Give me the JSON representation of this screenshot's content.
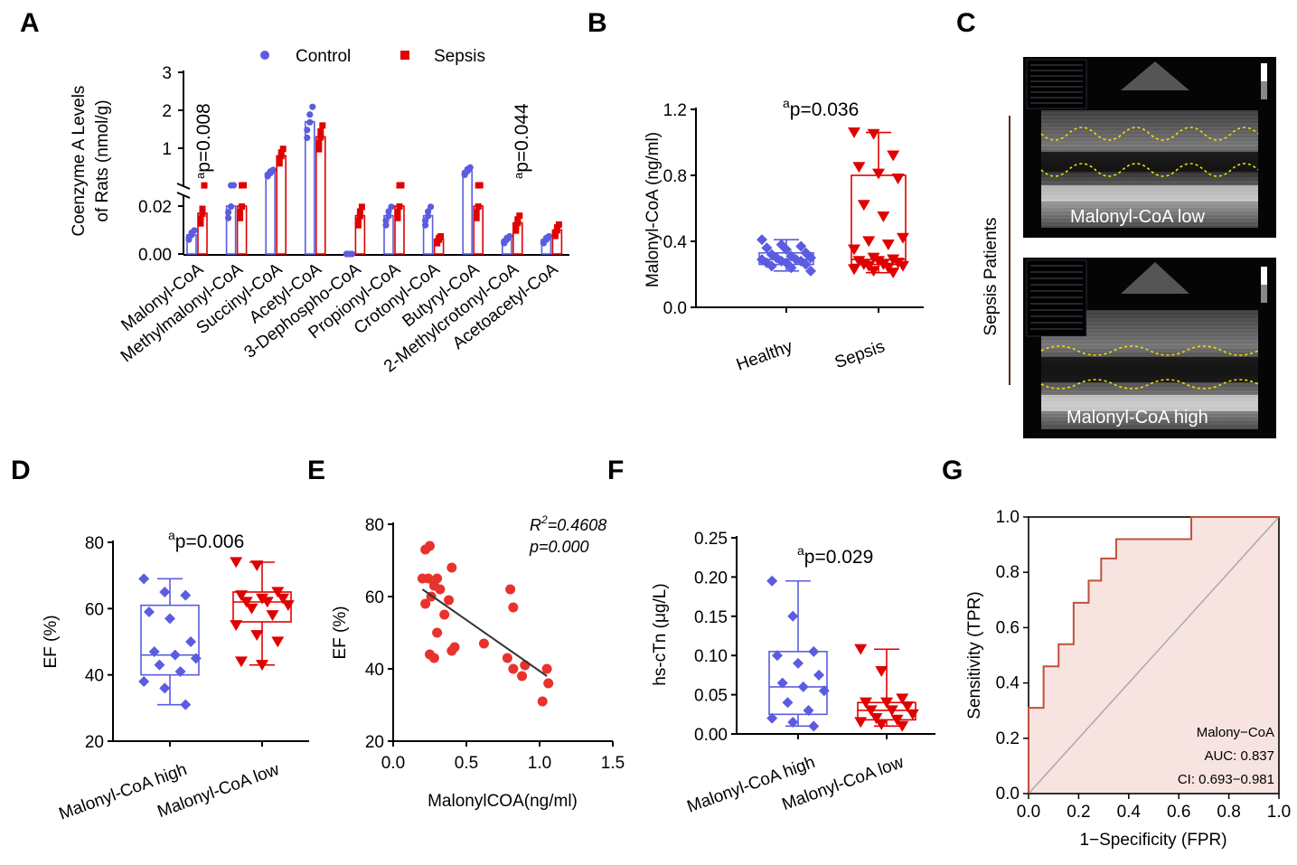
{
  "panels": {
    "A": "A",
    "B": "B",
    "C": "C",
    "D": "D",
    "E": "E",
    "F": "F",
    "G": "G"
  },
  "colors": {
    "control": "#5b5ce0",
    "sepsis": "#e00000",
    "roc": "#c0503c",
    "rocfill": "#f7e3df",
    "diag": "#aaaaaa"
  },
  "chart_data": [
    {
      "id": "A",
      "type": "bar",
      "title": "",
      "ylabel_line1": "Coenzyme A Levels",
      "ylabel_line2": "of Rats (nmol/g)",
      "legend": [
        "Control",
        "Sepsis"
      ],
      "categories": [
        "Malonyl-CoA",
        "Methylmalonyl-CoA",
        "Succinyl-CoA",
        "Acetyl-CoA",
        "3-Dephospho-CoA",
        "Propionyl-CoA",
        "Crotonyl-CoA",
        "Butyryl-CoA",
        "2-Methylcrotonyl-CoA",
        "Acetoacetyl-CoA"
      ],
      "y_upper_ticks": [
        "1",
        "2",
        "3"
      ],
      "y_lower_ticks": [
        "0.00",
        "0.02"
      ],
      "annotations": [
        {
          "sup": "a",
          "text": "p=0.008",
          "category": "Malonyl-CoA"
        },
        {
          "sup": "a",
          "text": "p=0.044",
          "category": "2-Methylcrotonyl-CoA"
        }
      ],
      "series": [
        {
          "name": "Control",
          "values": [
            0.008,
            0.02,
            0.35,
            1.7,
            0.0,
            0.016,
            0.016,
            0.4,
            0.006,
            0.006
          ]
        },
        {
          "name": "Sepsis",
          "values": [
            0.017,
            0.02,
            0.8,
            1.3,
            0.016,
            0.02,
            0.006,
            0.02,
            0.013,
            0.01
          ]
        }
      ]
    },
    {
      "id": "B",
      "type": "box",
      "ylabel": "Malonyl-CoA (ng/ml)",
      "categories": [
        "Healthy",
        "Sepsis"
      ],
      "yticks": [
        "0.0",
        "0.4",
        "0.8",
        "1.2"
      ],
      "ylim": [
        0,
        1.2
      ],
      "annotation": {
        "sup": "a",
        "text": "p=0.036"
      },
      "boxes": [
        {
          "min": 0.22,
          "q1": 0.26,
          "median": 0.29,
          "q3": 0.33,
          "max": 0.41
        },
        {
          "min": 0.21,
          "q1": 0.26,
          "median": 0.29,
          "q3": 0.8,
          "max": 1.06
        }
      ],
      "points": [
        [
          0.41,
          0.38,
          0.37,
          0.36,
          0.35,
          0.33,
          0.32,
          0.31,
          0.3,
          0.3,
          0.29,
          0.29,
          0.28,
          0.28,
          0.27,
          0.27,
          0.26,
          0.25,
          0.24,
          0.22
        ],
        [
          1.06,
          1.05,
          0.92,
          0.85,
          0.81,
          0.78,
          0.62,
          0.55,
          0.42,
          0.4,
          0.38,
          0.35,
          0.3,
          0.29,
          0.28,
          0.28,
          0.27,
          0.26,
          0.26,
          0.25,
          0.25,
          0.24,
          0.23,
          0.22,
          0.21
        ]
      ]
    },
    {
      "id": "D",
      "type": "box",
      "ylabel": "EF (%)",
      "categories": [
        "Malonyl-CoA high",
        "Malonyl-CoA low"
      ],
      "yticks": [
        "20",
        "40",
        "60",
        "80"
      ],
      "ylim": [
        20,
        80
      ],
      "annotation": {
        "sup": "a",
        "text": "p=0.006"
      },
      "boxes": [
        {
          "min": 31,
          "q1": 40,
          "median": 46,
          "q3": 61,
          "max": 69
        },
        {
          "min": 43,
          "q1": 56,
          "median": 62,
          "q3": 65,
          "max": 74
        }
      ],
      "points": [
        [
          69,
          65,
          64,
          59,
          57,
          50,
          47,
          46,
          45,
          43,
          41,
          38,
          36,
          31
        ],
        [
          74,
          73,
          65,
          64,
          63,
          63,
          62,
          62,
          61,
          60,
          58,
          55,
          52,
          50,
          44,
          43
        ]
      ]
    },
    {
      "id": "E",
      "type": "scatter",
      "xlabel": "MalonylCOA(ng/ml)",
      "ylabel": "EF (%)",
      "xticks": [
        "0.0",
        "0.5",
        "1.0",
        "1.5"
      ],
      "yticks": [
        "20",
        "40",
        "60",
        "80"
      ],
      "xlim": [
        0,
        1.5
      ],
      "ylim": [
        20,
        80
      ],
      "annotation_r2_prefix": "R",
      "annotation_r2_sup": "2",
      "annotation_r2": "=0.4608",
      "annotation_p": "p=0.000",
      "x": [
        0.22,
        0.25,
        0.24,
        0.3,
        0.2,
        0.28,
        0.26,
        0.32,
        0.4,
        0.22,
        0.35,
        0.3,
        0.42,
        0.25,
        0.28,
        0.4,
        0.38,
        0.62,
        0.8,
        0.82,
        0.78,
        0.88,
        0.82,
        0.9,
        1.05,
        1.02,
        1.06
      ],
      "y": [
        73,
        74,
        65,
        65,
        65,
        63,
        60,
        62,
        68,
        58,
        55,
        50,
        46,
        44,
        43,
        45,
        59,
        47,
        62,
        57,
        43,
        38,
        40,
        41,
        40,
        31,
        36
      ],
      "fit": {
        "x0": 0.2,
        "y0": 62,
        "x1": 1.05,
        "y1": 38
      }
    },
    {
      "id": "F",
      "type": "box",
      "ylabel": "hs-cTn (μg/L)",
      "categories": [
        "Malonyl-CoA high",
        "Malonyl-CoA low"
      ],
      "yticks": [
        "0.00",
        "0.05",
        "0.10",
        "0.15",
        "0.20",
        "0.25"
      ],
      "ylim": [
        0,
        0.25
      ],
      "annotation": {
        "sup": "a",
        "text": "p=0.029"
      },
      "boxes": [
        {
          "min": 0.01,
          "q1": 0.025,
          "median": 0.06,
          "q3": 0.105,
          "max": 0.195
        },
        {
          "min": 0.01,
          "q1": 0.018,
          "median": 0.03,
          "q3": 0.04,
          "max": 0.108
        }
      ],
      "points": [
        [
          0.195,
          0.15,
          0.105,
          0.1,
          0.09,
          0.075,
          0.065,
          0.06,
          0.055,
          0.04,
          0.03,
          0.02,
          0.015,
          0.01
        ],
        [
          0.108,
          0.08,
          0.045,
          0.04,
          0.04,
          0.035,
          0.03,
          0.03,
          0.025,
          0.02,
          0.018,
          0.015,
          0.012,
          0.01
        ]
      ]
    },
    {
      "id": "G",
      "type": "line",
      "xlabel": "1−Specificity (FPR)",
      "ylabel": "Sensitivity (TPR)",
      "xticks": [
        "0.0",
        "0.2",
        "0.4",
        "0.6",
        "0.8",
        "1.0"
      ],
      "yticks": [
        "0.0",
        "0.2",
        "0.4",
        "0.6",
        "0.8",
        "1.0"
      ],
      "xlim": [
        0,
        1
      ],
      "ylim": [
        0,
        1
      ],
      "legend_name": "Malony−CoA",
      "auc": "AUC: 0.837",
      "ci": "CI: 0.693−0.981",
      "x": [
        0,
        0,
        0.01,
        0.01,
        0.06,
        0.06,
        0.12,
        0.12,
        0.18,
        0.18,
        0.24,
        0.24,
        0.29,
        0.29,
        0.35,
        0.35,
        0.65,
        0.65,
        1.0
      ],
      "y": [
        0,
        0.31,
        0.31,
        0.31,
        0.31,
        0.46,
        0.46,
        0.54,
        0.54,
        0.69,
        0.69,
        0.77,
        0.77,
        0.85,
        0.85,
        0.92,
        0.92,
        1.0,
        1.0
      ]
    }
  ],
  "panelC": {
    "side_label": "Sepsis Patients",
    "top_caption": "Malonyl-CoA low",
    "bottom_caption": "Malonyl-CoA high"
  }
}
